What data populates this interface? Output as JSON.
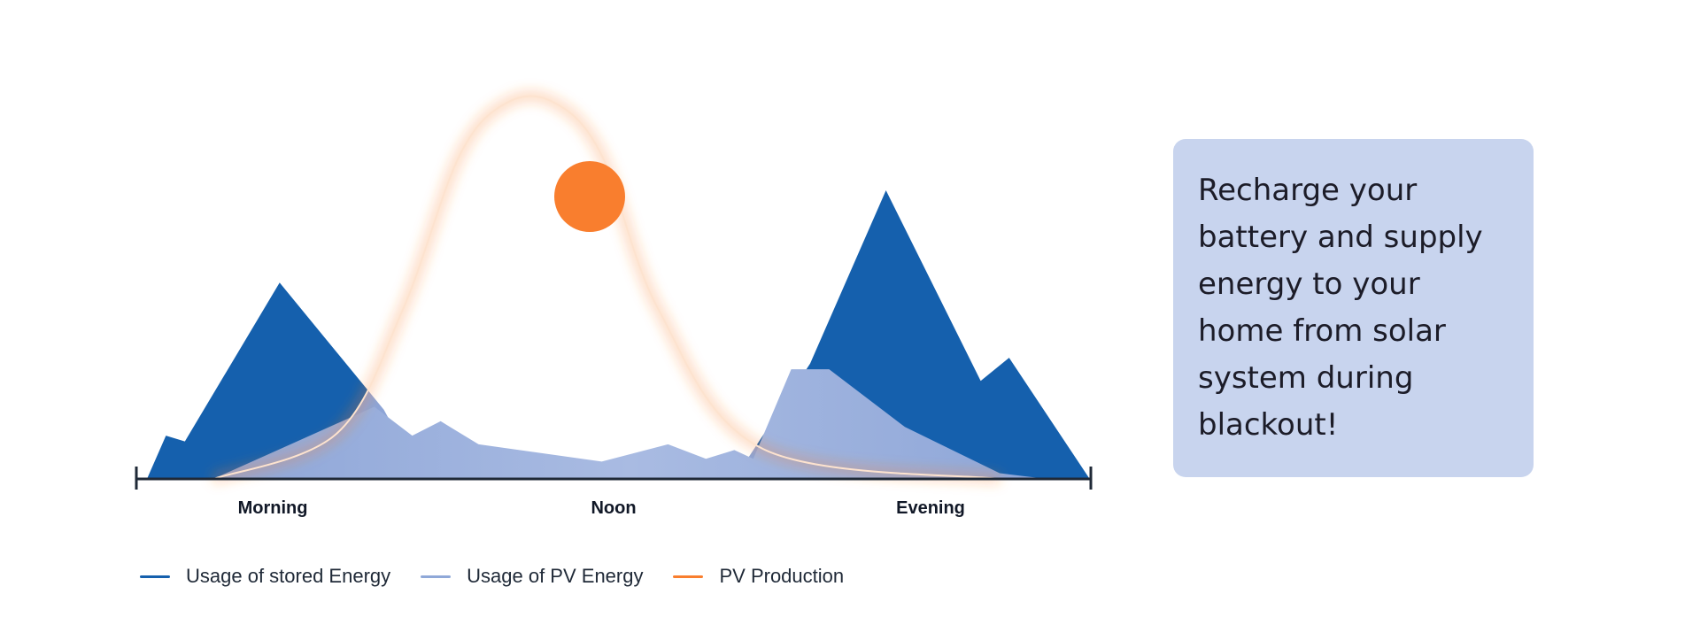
{
  "chart_data": {
    "type": "area",
    "x": [
      "Morning",
      "Noon",
      "Evening"
    ],
    "xlabels": [
      "Morning",
      "Noon",
      "Evening"
    ],
    "ylim": [
      0,
      1
    ],
    "series": [
      {
        "name": "Usage of stored Energy",
        "color": "#1560ad",
        "points": [
          [
            0.0,
            0.0
          ],
          [
            0.02,
            0.15
          ],
          [
            0.04,
            0.13
          ],
          [
            0.14,
            0.68
          ],
          [
            0.25,
            0.24
          ],
          [
            0.29,
            0.0
          ],
          [
            0.62,
            0.0
          ],
          [
            0.7,
            0.4
          ],
          [
            0.78,
            1.0
          ],
          [
            0.88,
            0.34
          ],
          [
            0.91,
            0.42
          ],
          [
            0.995,
            0.0
          ]
        ]
      },
      {
        "name": "Usage of PV Energy",
        "color": "#8fa8d8",
        "points": [
          [
            0.07,
            0.0
          ],
          [
            0.24,
            0.25
          ],
          [
            0.28,
            0.15
          ],
          [
            0.31,
            0.2
          ],
          [
            0.35,
            0.12
          ],
          [
            0.48,
            0.06
          ],
          [
            0.55,
            0.12
          ],
          [
            0.59,
            0.07
          ],
          [
            0.62,
            0.1
          ],
          [
            0.64,
            0.07
          ],
          [
            0.68,
            0.38
          ],
          [
            0.72,
            0.38
          ],
          [
            0.8,
            0.18
          ],
          [
            0.9,
            0.02
          ],
          [
            0.95,
            0.0
          ]
        ]
      },
      {
        "name": "PV Production",
        "color": "#f97e2e",
        "points": [
          [
            0.07,
            0.0
          ],
          [
            0.2,
            0.12
          ],
          [
            0.27,
            0.45
          ],
          [
            0.33,
            0.86
          ],
          [
            0.38,
            1.0
          ],
          [
            0.43,
            1.0
          ],
          [
            0.48,
            0.86
          ],
          [
            0.54,
            0.45
          ],
          [
            0.65,
            0.08
          ],
          [
            0.9,
            0.0
          ]
        ]
      }
    ],
    "legend": [
      "Usage of stored Energy",
      "Usage of PV Energy",
      "PV Production"
    ],
    "legend_position": "bottom-left",
    "grid": false
  },
  "legend": {
    "items": [
      {
        "label": "Usage of stored Energy",
        "color": "#1560ad"
      },
      {
        "label": "Usage of PV Energy",
        "color": "#8fa8d8"
      },
      {
        "label": "PV Production",
        "color": "#f97e2e"
      }
    ]
  },
  "card": {
    "text": "Recharge your battery and supply energy to your home from solar system during blackout!",
    "background": "#c8d4ee"
  },
  "sun": {
    "icon": "sun-icon",
    "color": "#f97e2e"
  }
}
